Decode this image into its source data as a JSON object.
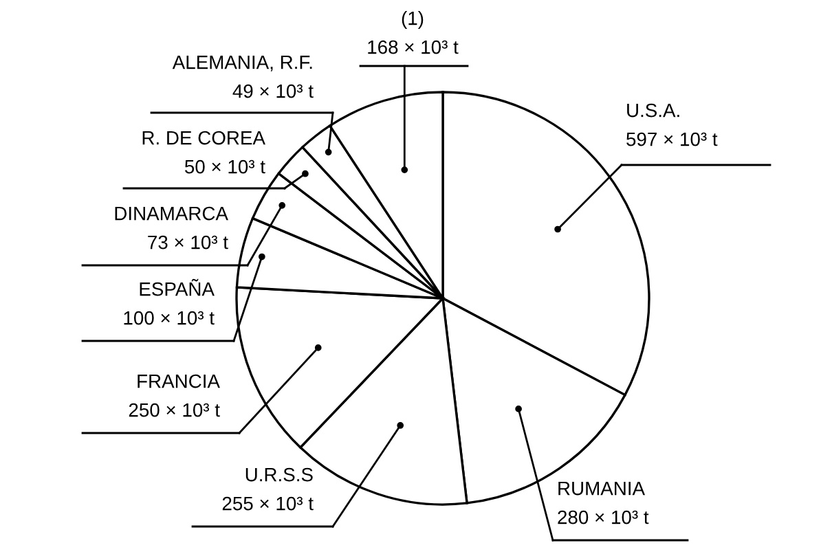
{
  "chart_data": {
    "type": "pie",
    "categories": [
      "U.S.A.",
      "RUMANIA",
      "U.R.S.S",
      "FRANCIA",
      "ESPAÑA",
      "DINAMARCA",
      "R. DE COREA",
      "ALEMANIA, R.F.",
      "(1)"
    ],
    "values": [
      597,
      280,
      255,
      250,
      100,
      73,
      50,
      49,
      168
    ],
    "colors": [
      "#ffffff",
      "#ffffff",
      "#ffffff",
      "#ffffff",
      "#ffffff",
      "#ffffff",
      "#ffffff",
      "#ffffff",
      "#ffffff"
    ],
    "value_labels": [
      "597 × 10³ t",
      "280 × 10³ t",
      "255 × 10³ t",
      "250 × 10³ t",
      "100 × 10³ t",
      "73 × 10³ t",
      "50 × 10³ t",
      "49 × 10³ t",
      "168 × 10³ t"
    ]
  }
}
